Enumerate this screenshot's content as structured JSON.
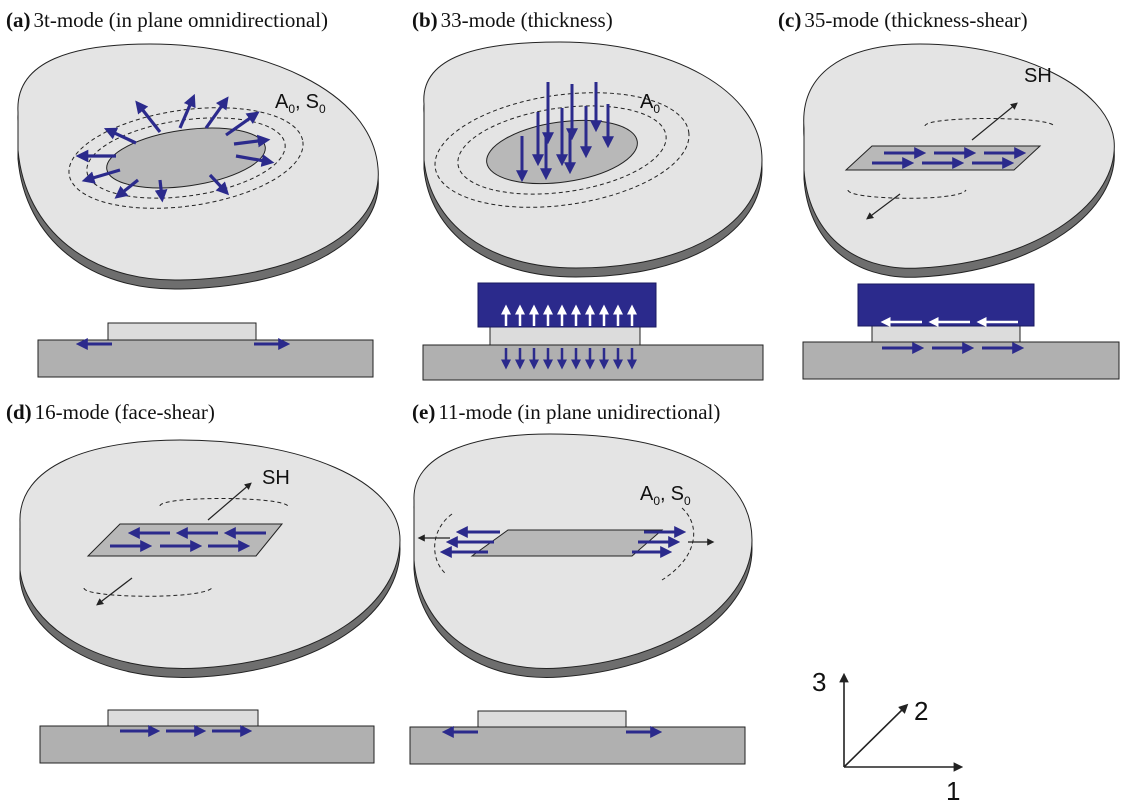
{
  "panels": {
    "a": {
      "label": "(a)",
      "title": "3t-mode (in plane omnidirectional)"
    },
    "b": {
      "label": "(b)",
      "title": "33-mode (thickness)"
    },
    "c": {
      "label": "(c)",
      "title": "35-mode (thickness-shear)"
    },
    "d": {
      "label": "(d)",
      "title": "16-mode (face-shear)"
    },
    "e": {
      "label": "(e)",
      "title": "11-mode (in plane unidirectional)"
    }
  },
  "wave_labels": {
    "a": {
      "A": "A",
      "S": "S",
      "sub": "0",
      "sep": ","
    },
    "b": {
      "A": "A",
      "sub": "0"
    },
    "c": {
      "text": "SH"
    },
    "d": {
      "text": "SH"
    },
    "e": {
      "A": "A",
      "S": "S",
      "sub": "0",
      "sep": ","
    }
  },
  "axes": {
    "axis3": "3",
    "axis2": "2",
    "axis1": "1"
  },
  "colors": {
    "plate_top": "#e4e4e4",
    "plate_side": "#707070",
    "substrate": "#b0b0b0",
    "patch": "#b8b8b8",
    "arrow": "#2b2a8c",
    "actuator": "#2b2a8c",
    "outline": "#222222"
  }
}
